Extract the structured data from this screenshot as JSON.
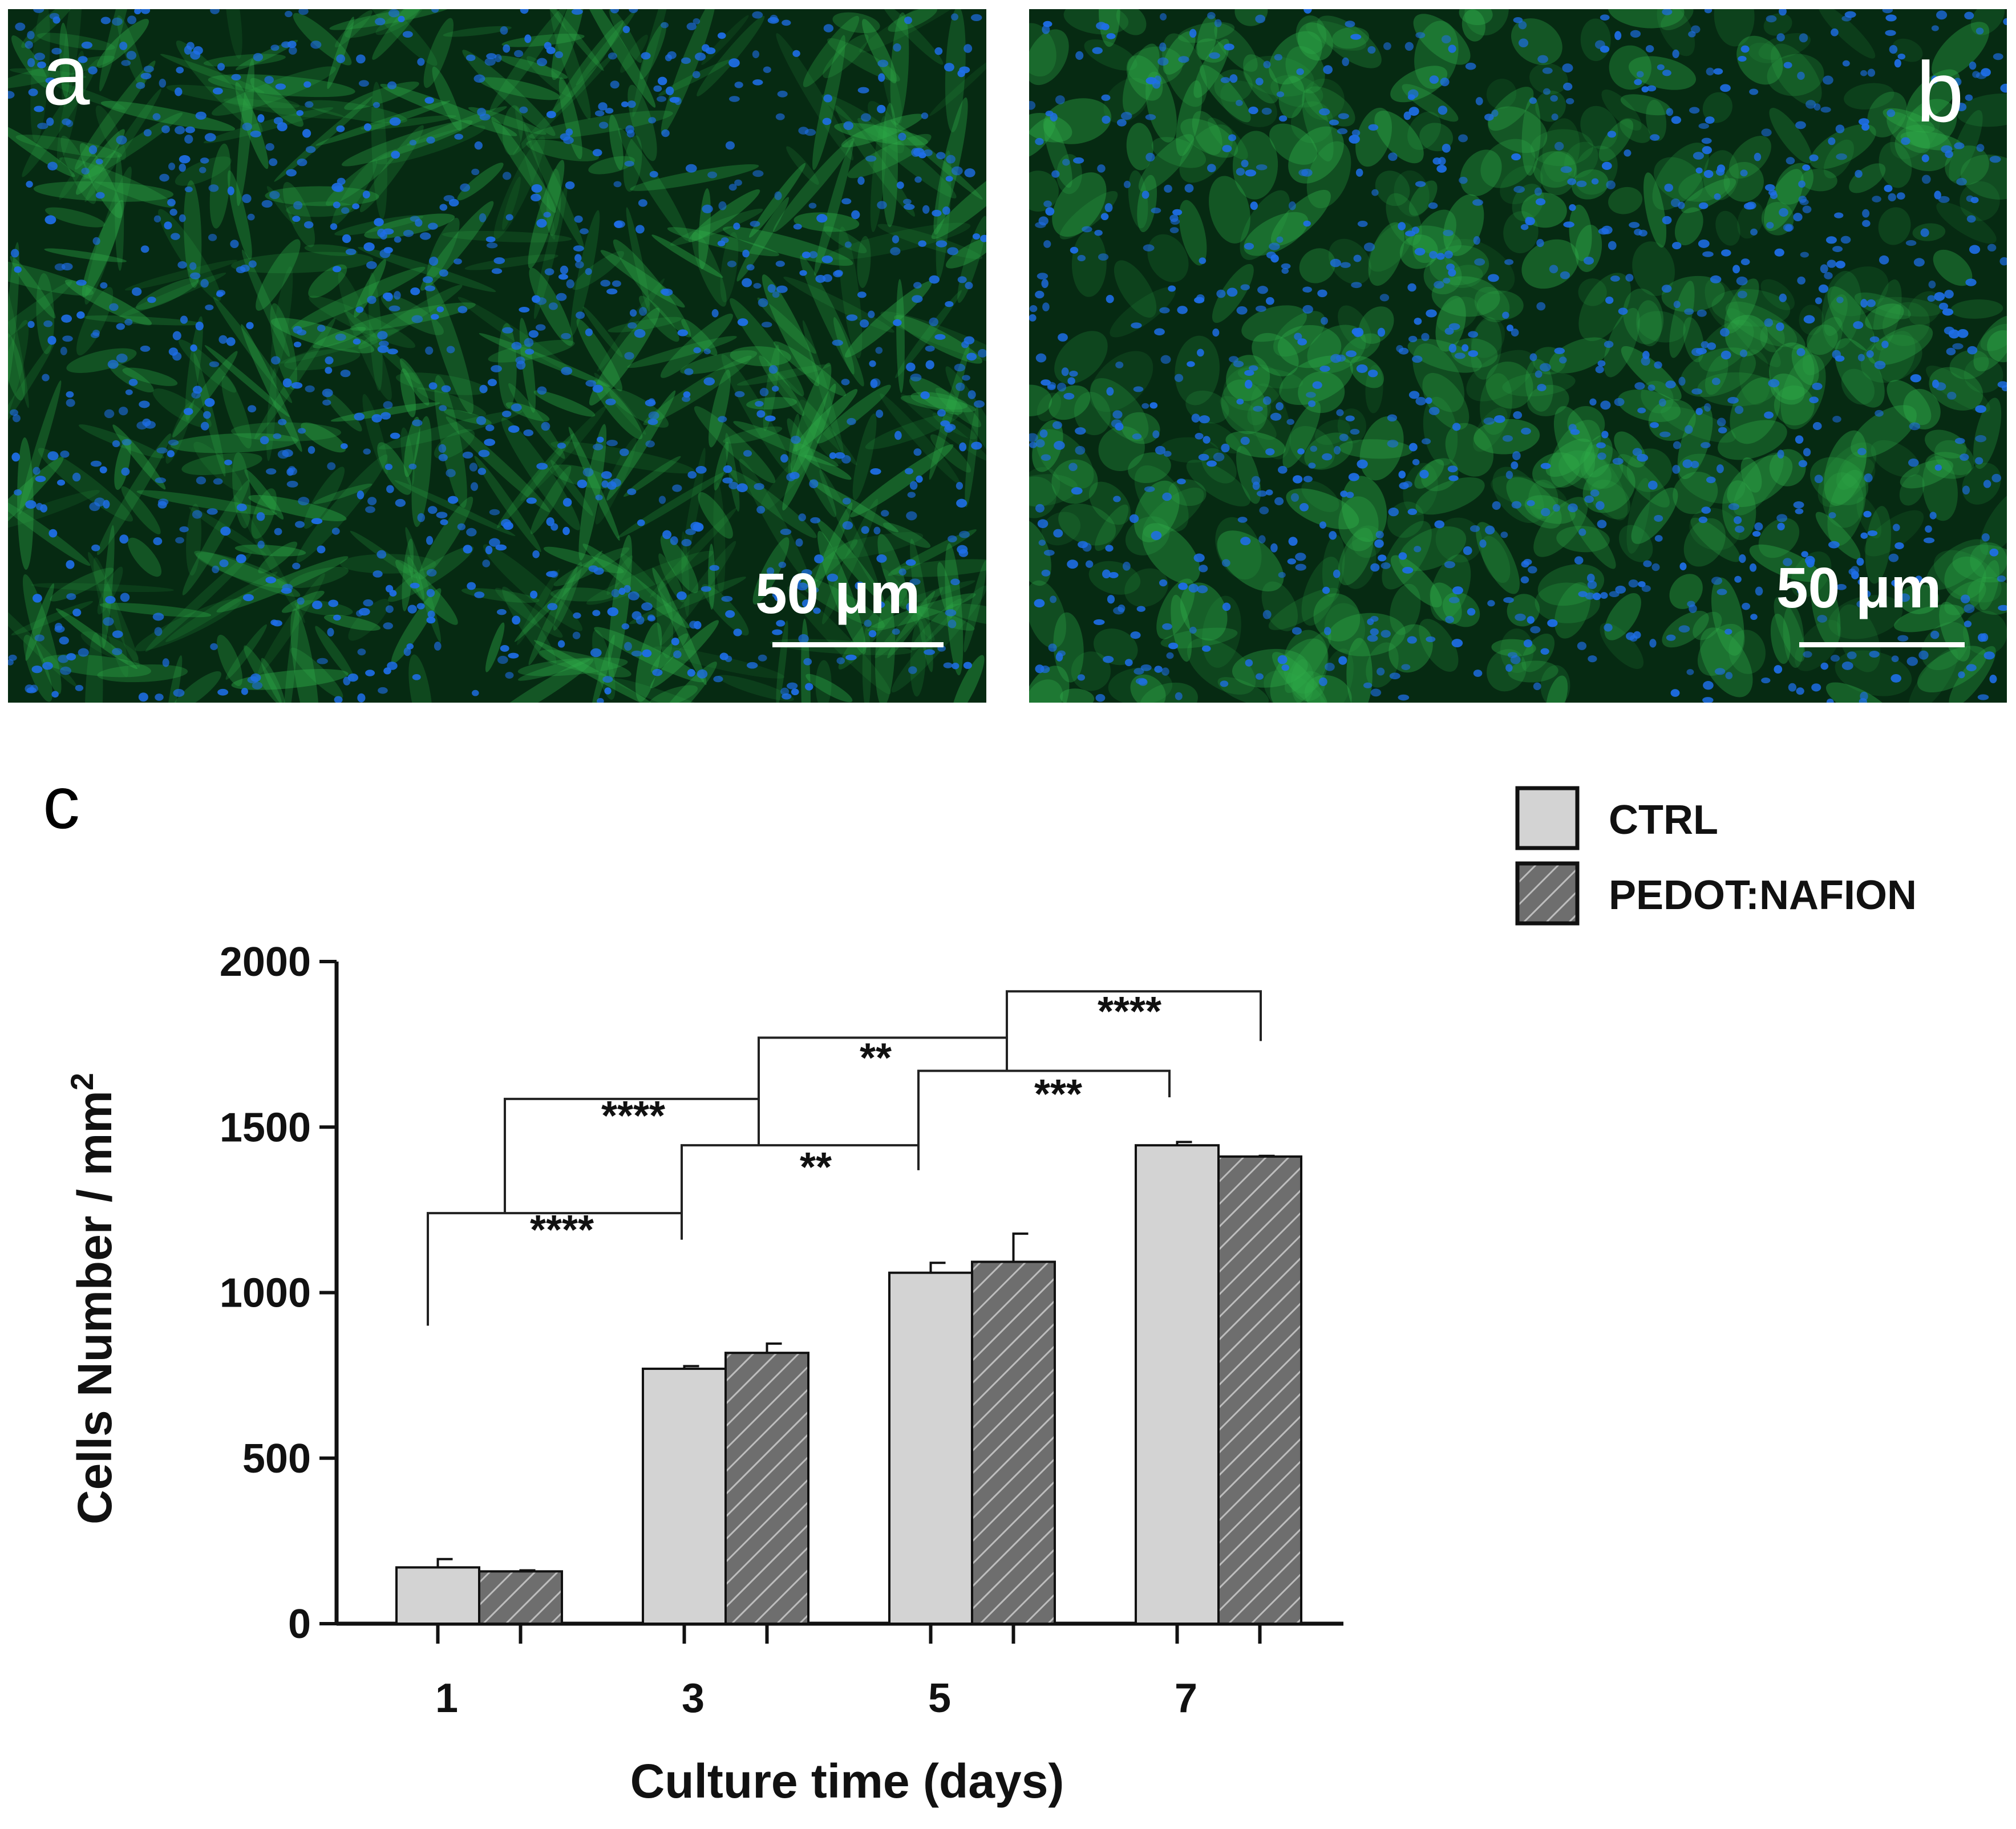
{
  "panels": {
    "a": {
      "letter": "a",
      "scale_label": "50 μm"
    },
    "b": {
      "letter": "b",
      "scale_label": "50 μm"
    },
    "c": {
      "letter": "c"
    }
  },
  "colors": {
    "ctrl_fill": "#d3d3d3",
    "pedot_fill": "#6e6e6e",
    "hatch": "#bdbdbd",
    "stroke": "#111111",
    "stain_green": "#2fae4a",
    "stain_blue": "#1e6ee8",
    "background_dark": "#062a12"
  },
  "chart_data": {
    "type": "bar",
    "xlabel": "Culture time (days)",
    "ylabel": "Cells Number / mm",
    "ylabel_superscript": "2",
    "categories": [
      "1",
      "3",
      "5",
      "7"
    ],
    "ylim": [
      0,
      2000
    ],
    "yticks": [
      "0",
      "500",
      "1000",
      "1500",
      "2000"
    ],
    "legend_position": "top-right",
    "series": [
      {
        "name": "CTRL",
        "values": [
          170,
          770,
          1060,
          1445
        ],
        "errors": [
          25,
          8,
          30,
          10
        ]
      },
      {
        "name": "PEDOT:NAFION",
        "values": [
          158,
          818,
          1093,
          1411
        ],
        "errors": [
          3,
          28,
          85,
          2
        ]
      }
    ],
    "significance": [
      {
        "from": "1",
        "to": "3",
        "label": "****",
        "bracket_y": 1240,
        "left_end": 900,
        "right_end": 1160
      },
      {
        "from": "3",
        "to": "5",
        "label": "**",
        "bracket_y": 1445,
        "left_end": 1160,
        "right_end": 1370
      },
      {
        "from": "5",
        "to": "7",
        "label": "***",
        "bracket_y": 1670,
        "left_end": 1370,
        "right_end": 1590
      },
      {
        "from": "1-3",
        "to": "3-5",
        "label": "****",
        "bracket_y": 1585,
        "left_end": 1240,
        "right_end": 1445
      },
      {
        "from": "3-5",
        "to": "5-7",
        "label": "**",
        "bracket_y": 1770,
        "left_end": 1445,
        "right_end": 1670
      },
      {
        "from": "5-7",
        "to": "7",
        "label": "****",
        "bracket_y": 1910,
        "left_end": 1770,
        "right_end": 1760
      }
    ]
  }
}
